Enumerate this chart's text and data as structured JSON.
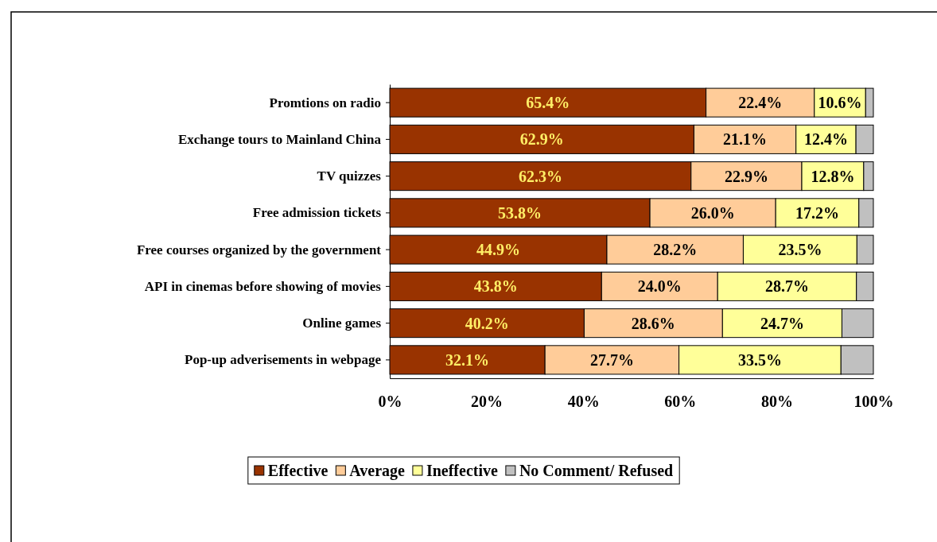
{
  "chart_data": {
    "type": "bar",
    "orientation": "horizontal",
    "stacked": true,
    "categories": [
      "Promtions on radio",
      "Exchange tours to Mainland China",
      "TV quizzes",
      "Free admission tickets",
      "Free courses organized by the government",
      "API in cinemas before showing of movies",
      "Online games",
      "Pop-up adverisements in webpage"
    ],
    "series": [
      {
        "name": "Effective",
        "color": "#993300",
        "values": [
          65.4,
          62.9,
          62.3,
          53.8,
          44.9,
          43.8,
          40.2,
          32.1
        ],
        "value_labels": [
          "65.4%",
          "62.9%",
          "62.3%",
          "53.8%",
          "44.9%",
          "43.8%",
          "40.2%",
          "32.1%"
        ]
      },
      {
        "name": "Average",
        "color": "#ffcc99",
        "values": [
          22.4,
          21.1,
          22.9,
          26.0,
          28.2,
          24.0,
          28.6,
          27.7
        ],
        "value_labels": [
          "22.4%",
          "21.1%",
          "22.9%",
          "26.0%",
          "28.2%",
          "24.0%",
          "28.6%",
          "27.7%"
        ]
      },
      {
        "name": "Ineffective",
        "color": "#ffff99",
        "values": [
          10.6,
          12.4,
          12.8,
          17.2,
          23.5,
          28.7,
          24.7,
          33.5
        ],
        "value_labels": [
          "10.6%",
          "12.4%",
          "12.8%",
          "17.2%",
          "23.5%",
          "28.7%",
          "24.7%",
          "33.5%"
        ]
      },
      {
        "name": "No Comment/ Refused",
        "color": "#c0c0c0",
        "values": [
          1.6,
          3.6,
          2.0,
          3.0,
          3.4,
          3.5,
          6.5,
          6.7
        ]
      }
    ],
    "xlim": [
      0,
      100
    ],
    "xticks": [
      {
        "value": 0,
        "label": "0%"
      },
      {
        "value": 20,
        "label": "20%"
      },
      {
        "value": 40,
        "label": "40%"
      },
      {
        "value": 60,
        "label": "60%"
      },
      {
        "value": 80,
        "label": "80%"
      },
      {
        "value": 100,
        "label": "100%"
      }
    ],
    "grid": false,
    "legend": "bottom"
  }
}
